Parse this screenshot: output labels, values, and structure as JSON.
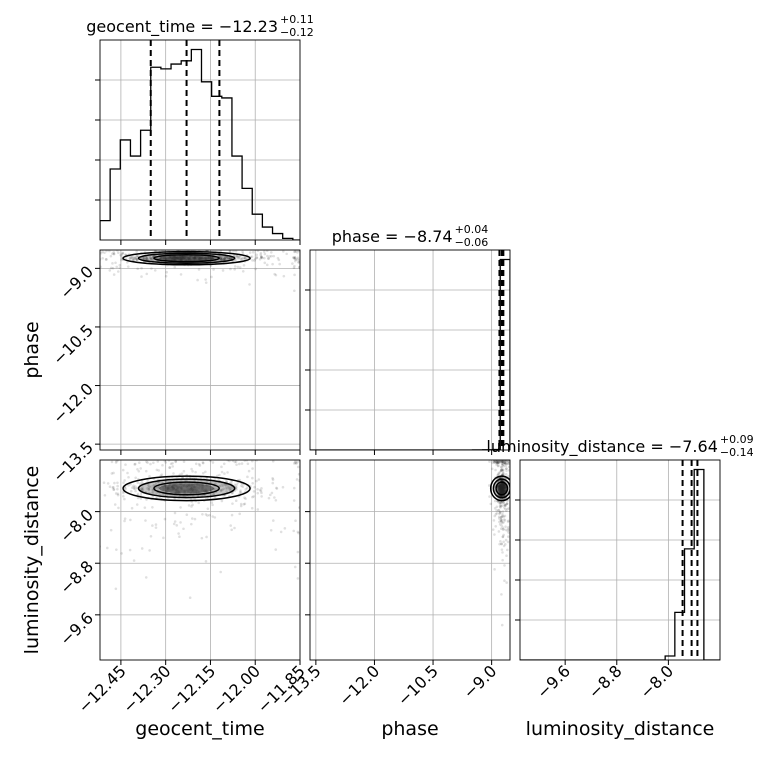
{
  "chart_data": {
    "type": "corner",
    "parameters": [
      "geocent_time",
      "phase",
      "luminosity_distance"
    ],
    "axis_labels": {
      "geocent_time": "geocent_time",
      "phase": "phase",
      "luminosity_distance": "luminosity_distance"
    },
    "titles": {
      "geocent_time": {
        "prefix": "geocent_time = ",
        "median": "−12.23",
        "plus": "+0.11",
        "minus": "−0.12"
      },
      "phase": {
        "prefix": "phase = ",
        "median": "−8.74",
        "plus": "+0.04",
        "minus": "−0.06"
      },
      "luminosity_distance": {
        "prefix": "luminosity_distance = ",
        "median": "−7.64",
        "plus": "+0.09",
        "minus": "−0.14"
      }
    },
    "ranges": {
      "geocent_time": [
        -12.52,
        -11.85
      ],
      "phase": [
        -13.65,
        -8.53
      ],
      "luminosity_distance": [
        -10.3,
        -7.2
      ]
    },
    "ticks": {
      "geocent_time": {
        "values": [
          -12.45,
          -12.3,
          -12.15,
          -12.0,
          -11.85
        ],
        "labels": [
          "−12.45",
          "−12.30",
          "−12.15",
          "−12.00",
          "−11.85"
        ]
      },
      "phase": {
        "values": [
          -13.5,
          -12.0,
          -10.5,
          -9.0
        ],
        "labels": [
          "−13.5",
          "−12.0",
          "−10.5",
          "−9.0"
        ]
      },
      "luminosity_distance": {
        "values": [
          -9.6,
          -8.8,
          -8.0
        ],
        "labels": [
          "−9.6",
          "−8.8",
          "−8.0"
        ]
      }
    },
    "quantiles": {
      "geocent_time": [
        -12.35,
        -12.23,
        -12.12
      ],
      "phase": [
        -8.8,
        -8.74,
        -8.7
      ],
      "luminosity_distance": [
        -7.78,
        -7.64,
        -7.55
      ]
    },
    "histograms": {
      "geocent_time": {
        "edges": [
          -12.52,
          -12.486,
          -12.452,
          -12.418,
          -12.384,
          -12.35,
          -12.316,
          -12.282,
          -12.248,
          -12.214,
          -12.18,
          -12.146,
          -12.112,
          -12.078,
          -12.044,
          -12.01,
          -11.976,
          -11.942,
          -11.908,
          -11.874,
          -11.85
        ],
        "counts": [
          12,
          44,
          62,
          52,
          68,
          107,
          106,
          109,
          111,
          118,
          98,
          89,
          88,
          52,
          32,
          16,
          8,
          4,
          1,
          0
        ]
      },
      "phase": {
        "edges": [
          -13.65,
          -13.39,
          -13.13,
          -12.87,
          -12.61,
          -12.35,
          -12.09,
          -11.83,
          -11.57,
          -11.31,
          -11.05,
          -10.79,
          -10.53,
          -10.27,
          -10.01,
          -9.75,
          -9.49,
          -9.23,
          -8.97,
          -8.78,
          -8.53
        ],
        "counts": [
          0,
          0,
          0,
          0,
          0,
          0,
          0,
          0,
          0,
          0,
          0,
          0,
          0,
          0,
          0,
          0,
          1,
          2,
          5,
          2000
        ]
      },
      "luminosity_distance": {
        "edges": [
          -10.3,
          -10.15,
          -10.0,
          -9.85,
          -9.7,
          -9.55,
          -9.4,
          -9.25,
          -9.1,
          -8.95,
          -8.8,
          -8.65,
          -8.5,
          -8.35,
          -8.2,
          -8.05,
          -7.9,
          -7.75,
          -7.6,
          -7.45,
          -7.2
        ],
        "counts": [
          0,
          0,
          0,
          0,
          0,
          0,
          0,
          0,
          0,
          0,
          0,
          0,
          0,
          0,
          0,
          1,
          12,
          28,
          48,
          0
        ]
      }
    },
    "scatter_samples": 700,
    "contour_levels": 3,
    "grid": true
  }
}
